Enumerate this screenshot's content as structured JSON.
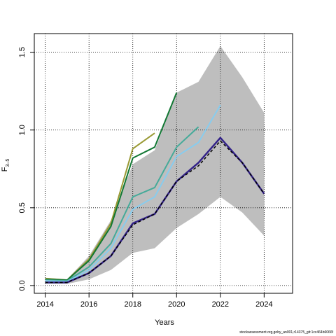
{
  "chart_data": {
    "type": "line",
    "xlabel": "Years",
    "ylabel": "F",
    "ylabel_subscript": "3–5",
    "xlim": [
      2013.5,
      2025.3
    ],
    "ylim": [
      -0.05,
      1.62
    ],
    "x_ticks": [
      2014,
      2016,
      2018,
      2020,
      2022,
      2024
    ],
    "y_ticks": [
      0.0,
      0.5,
      1.0,
      1.5
    ],
    "y_tick_labels": [
      "0.0",
      "0.5",
      "1.0",
      "1.5"
    ],
    "grid": true,
    "band": {
      "color": "#bebebe",
      "x": [
        2014,
        2015,
        2016,
        2017,
        2018,
        2019,
        2020,
        2021,
        2022,
        2023,
        2024
      ],
      "upper": [
        0.05,
        0.04,
        0.19,
        0.42,
        0.78,
        0.87,
        1.24,
        1.31,
        1.54,
        1.34,
        1.11
      ],
      "lower": [
        0.01,
        0.01,
        0.04,
        0.1,
        0.21,
        0.24,
        0.37,
        0.46,
        0.57,
        0.47,
        0.32
      ]
    },
    "series": [
      {
        "color": "#999933",
        "width": 2,
        "dash": false,
        "x": [
          2014,
          2015,
          2016,
          2017,
          2018,
          2019
        ],
        "values": [
          0.045,
          0.035,
          0.17,
          0.4,
          0.88,
          0.98
        ]
      },
      {
        "color": "#117733",
        "width": 2,
        "dash": false,
        "x": [
          2014,
          2015,
          2016,
          2017,
          2018,
          2019,
          2020
        ],
        "values": [
          0.04,
          0.035,
          0.16,
          0.38,
          0.82,
          0.89,
          1.24
        ]
      },
      {
        "color": "#44AA99",
        "width": 2,
        "dash": false,
        "x": [
          2014,
          2015,
          2016,
          2017,
          2018,
          2019,
          2020,
          2021
        ],
        "values": [
          0.035,
          0.03,
          0.12,
          0.27,
          0.57,
          0.63,
          0.89,
          1.02
        ]
      },
      {
        "color": "#88CCEE",
        "width": 2,
        "dash": false,
        "x": [
          2014,
          2015,
          2016,
          2017,
          2018,
          2019,
          2020,
          2021,
          2022
        ],
        "values": [
          0.03,
          0.025,
          0.1,
          0.24,
          0.49,
          0.57,
          0.83,
          0.92,
          1.16
        ]
      },
      {
        "color": "#332288",
        "width": 2.5,
        "dash": false,
        "x": [
          2014,
          2015,
          2016,
          2017,
          2018,
          2019,
          2020,
          2021,
          2022,
          2023,
          2024
        ],
        "values": [
          0.02,
          0.02,
          0.08,
          0.19,
          0.4,
          0.46,
          0.67,
          0.79,
          0.95,
          0.79,
          0.59
        ]
      },
      {
        "color": "#000000",
        "width": 1.5,
        "dash": true,
        "x": [
          2014,
          2015,
          2016,
          2017,
          2018,
          2019,
          2020,
          2021,
          2022,
          2023,
          2024
        ],
        "values": [
          0.02,
          0.02,
          0.08,
          0.19,
          0.39,
          0.46,
          0.67,
          0.77,
          0.93,
          0.79,
          0.59
        ]
      }
    ]
  },
  "footnote": "stockassessment.org,goby_an001,r14375_git:1cc464b6066f"
}
